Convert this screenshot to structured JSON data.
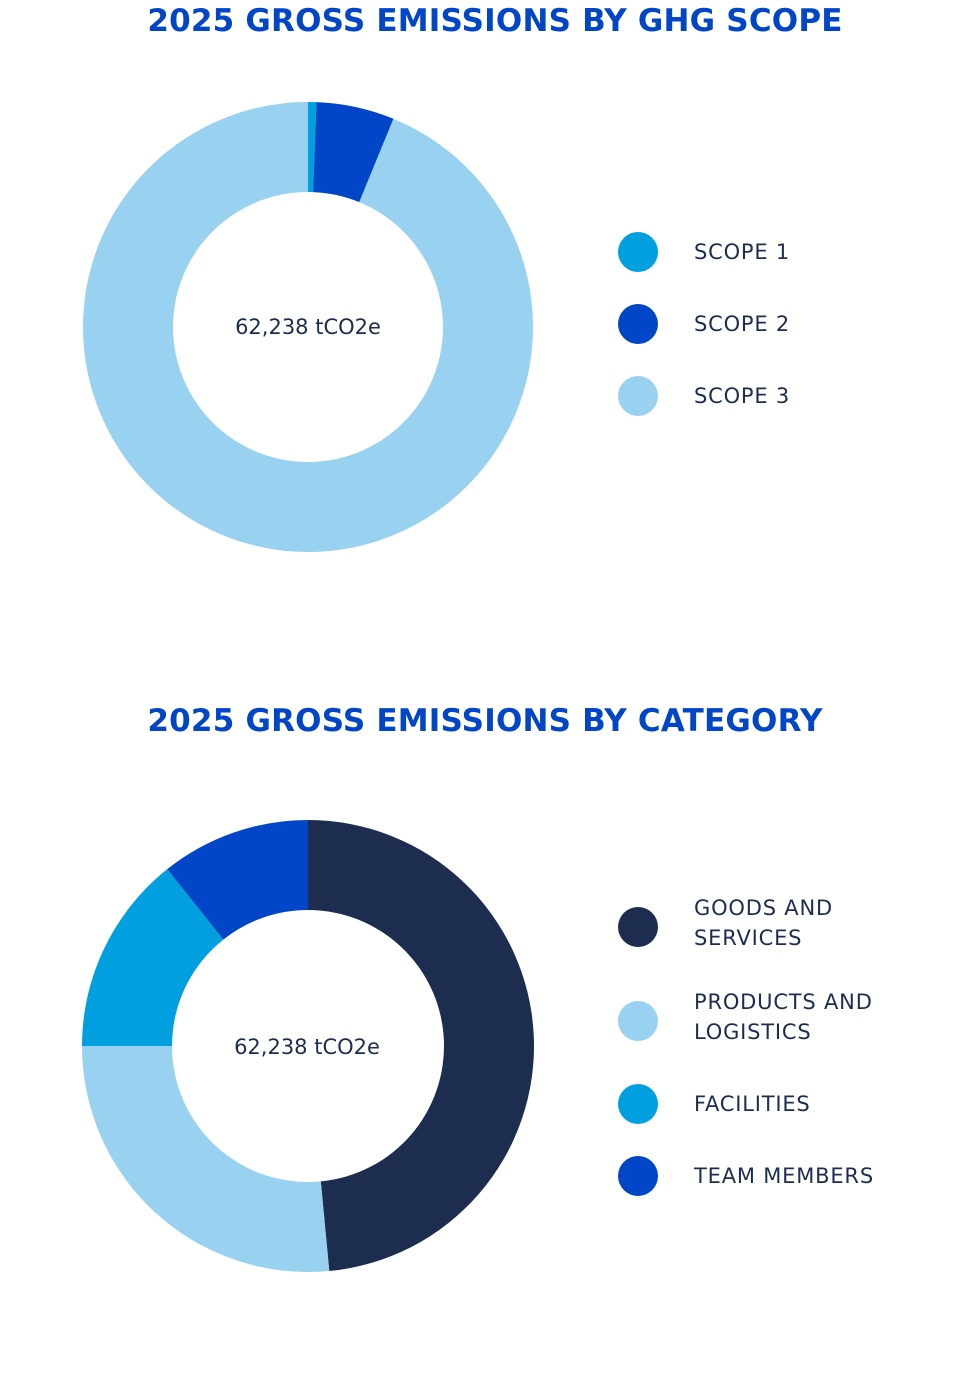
{
  "chart_data": [
    {
      "type": "pie",
      "title": "2025 GROSS EMISSIONS BY GHG SCOPE",
      "center_label": "62,238 tCO2e",
      "categories": [
        "SCOPE 1",
        "SCOPE 2",
        "SCOPE 3"
      ],
      "values": [
        0.6,
        5.6,
        93.8
      ],
      "unit": "%",
      "colors": [
        "#009fe0",
        "#0046c7",
        "#99d2f0"
      ],
      "legend_position": "right"
    },
    {
      "type": "pie",
      "title": "2025 GROSS EMISSIONS BY CATEGORY",
      "center_label": "62,238 tCO2e",
      "categories": [
        "GOODS AND SERVICES",
        "PRODUCTS AND LOGISTICS",
        "FACILITIES",
        "TEAM MEMBERS"
      ],
      "values": [
        48.5,
        26.5,
        14.3,
        10.7
      ],
      "unit": "%",
      "colors": [
        "#1c2d4f",
        "#99d2f0",
        "#009fe0",
        "#0046c7"
      ],
      "legend_position": "right"
    }
  ]
}
